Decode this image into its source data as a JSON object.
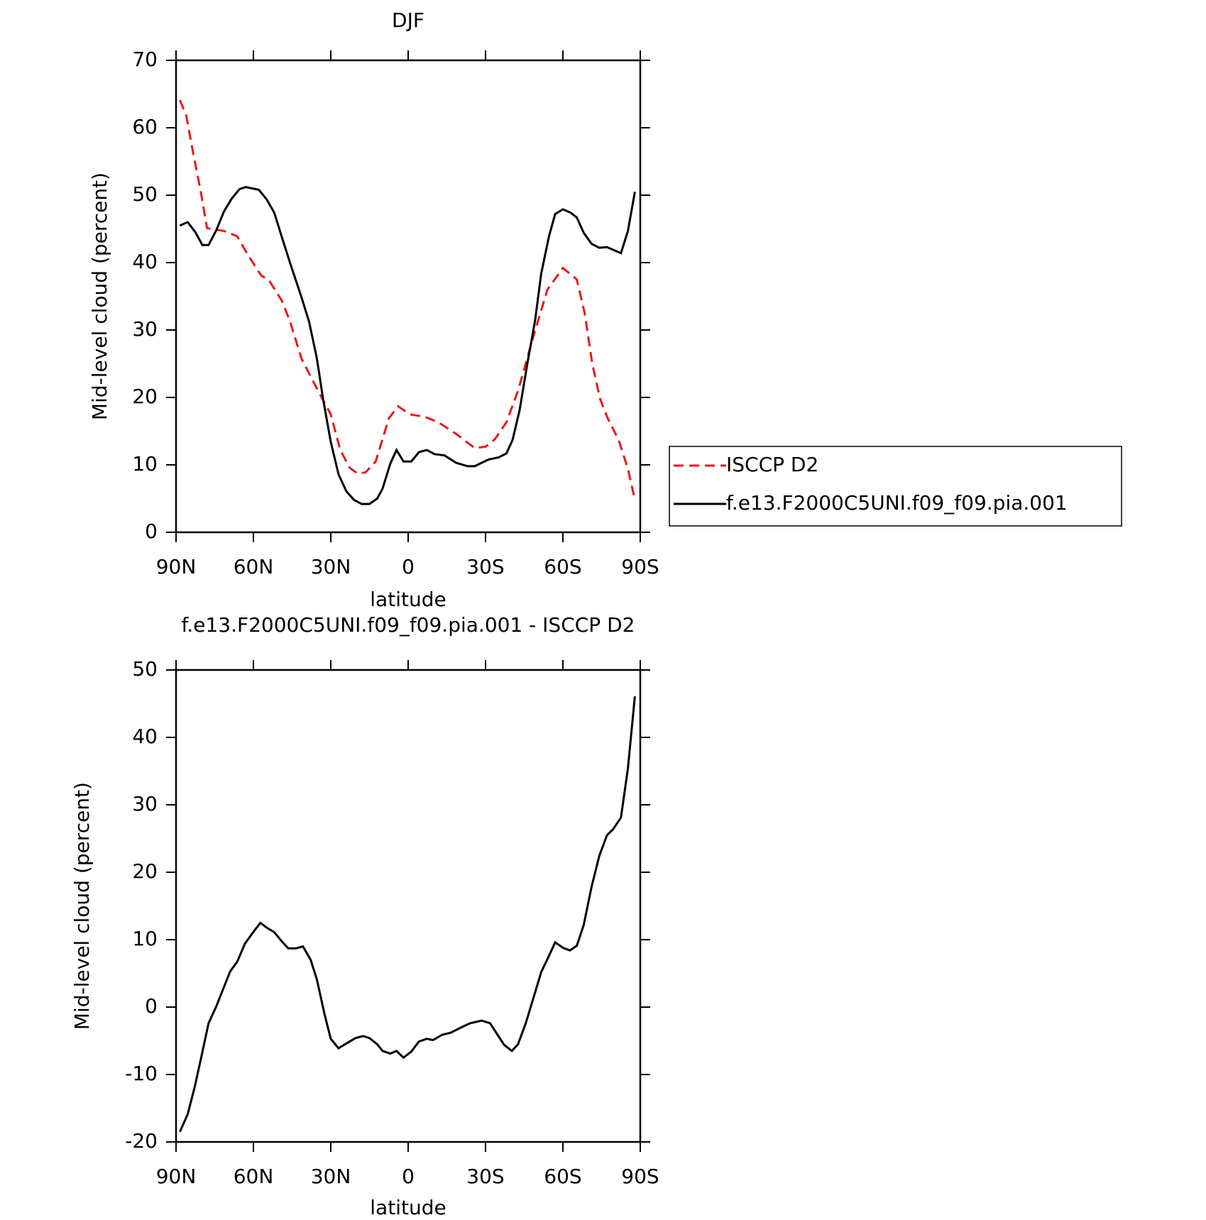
{
  "chart_data": [
    {
      "type": "line",
      "title": "DJF",
      "xlabel": "latitude",
      "ylabel": "Mid-level cloud (percent)",
      "xlim": [
        90,
        -90
      ],
      "ylim": [
        0,
        70
      ],
      "xticks": [
        {
          "value": 90,
          "label": "90N"
        },
        {
          "value": 60,
          "label": "60N"
        },
        {
          "value": 30,
          "label": "30N"
        },
        0,
        {
          "value": -30,
          "label": "30S"
        },
        {
          "value": -60,
          "label": "60S"
        },
        {
          "value": -90,
          "label": "90S"
        }
      ],
      "yticks": [
        0,
        10,
        20,
        30,
        40,
        50,
        60,
        70
      ],
      "legend": "right",
      "series": [
        {
          "name": "ISCCP D2",
          "color": "#e8191b",
          "dashed": true,
          "x": [
            88.5,
            86.1,
            83.4,
            80.4,
            78,
            71.4,
            66.3,
            62.4,
            57,
            54,
            48.9,
            45.9,
            41.4,
            35.4,
            30,
            26.4,
            22.8,
            19.5,
            16.5,
            12.6,
            7.5,
            3.9,
            -0.6,
            -6.6,
            -11.7,
            -18.6,
            -25.8,
            -30,
            -33.6,
            -38.1,
            -42.6,
            -48.6,
            -54,
            -60,
            -65.4,
            -68.4,
            -71.4,
            -74.4,
            -77.4,
            -81.6,
            -85.2,
            -87.9
          ],
          "values": [
            64.1,
            61.9,
            56.3,
            50.5,
            45.1,
            44.7,
            43.9,
            41.3,
            38.1,
            37.4,
            34.3,
            31.4,
            25.8,
            21.3,
            17.5,
            12.3,
            9.6,
            8.7,
            8.9,
            10.5,
            16.9,
            18.7,
            17.5,
            17.1,
            16.3,
            14.6,
            12.5,
            12.7,
            13.8,
            16.3,
            21,
            29.1,
            36,
            39.2,
            37.5,
            32.6,
            25,
            19.8,
            16.9,
            13.7,
            9.4,
            4.8
          ]
        },
        {
          "name": "f.e13.F2000C5UNI.f09_f09.pia.001",
          "color": "#000000",
          "dashed": false,
          "x": [
            88.5,
            85.5,
            82.5,
            79.8,
            77.4,
            74.4,
            71.4,
            68.4,
            65.4,
            63,
            57.9,
            54.9,
            51.9,
            48.9,
            45.9,
            41.4,
            38.4,
            35.4,
            33,
            30,
            27,
            24,
            21,
            18,
            15,
            12,
            9.9,
            6.9,
            4.5,
            1.8,
            -1.2,
            -4.2,
            -7.2,
            -10.2,
            -14.1,
            -18.6,
            -23.1,
            -25.8,
            -31.2,
            -35.1,
            -38.1,
            -40.5,
            -43.2,
            -46.2,
            -49.2,
            -51.6,
            -54.6,
            -57,
            -60,
            -63,
            -65.4,
            -68.1,
            -71.1,
            -74.1,
            -77.1,
            -82.5,
            -85.2,
            -87.9
          ],
          "values": [
            45.5,
            46,
            44.5,
            42.6,
            42.6,
            44.8,
            47.6,
            49.5,
            50.9,
            51.2,
            50.8,
            49.4,
            47.4,
            43.7,
            40.1,
            34.9,
            31.2,
            25.8,
            19.8,
            13.4,
            8.6,
            6.1,
            4.8,
            4.2,
            4.2,
            5,
            6.5,
            10.2,
            12.2,
            10.5,
            10.5,
            11.9,
            12.2,
            11.6,
            11.4,
            10.3,
            9.8,
            9.8,
            10.8,
            11.1,
            11.7,
            13.7,
            18.1,
            25,
            31.4,
            38.4,
            43.9,
            47.2,
            47.9,
            47.4,
            46.7,
            44.4,
            42.8,
            42.2,
            42.3,
            41.4,
            44.7,
            50.5
          ]
        }
      ]
    },
    {
      "type": "line",
      "title": "f.e13.F2000C5UNI.f09_f09.pia.001 - ISCCP D2",
      "xlabel": "latitude",
      "ylabel": "Mid-level cloud (percent)",
      "xlim": [
        90,
        -90
      ],
      "ylim": [
        -20,
        50
      ],
      "xticks": [
        {
          "value": 90,
          "label": "90N"
        },
        {
          "value": 60,
          "label": "60N"
        },
        {
          "value": 30,
          "label": "30N"
        },
        0,
        {
          "value": -30,
          "label": "30S"
        },
        {
          "value": -60,
          "label": "60S"
        },
        {
          "value": -90,
          "label": "90S"
        }
      ],
      "yticks": [
        -20,
        -10,
        0,
        10,
        20,
        30,
        40,
        50
      ],
      "series": [
        {
          "color": "#000000",
          "dashed": false,
          "x": [
            88.5,
            85.5,
            82.8,
            80.1,
            77.4,
            74.4,
            71.4,
            69,
            66.3,
            63.3,
            60.3,
            57.3,
            54.9,
            51.9,
            48.9,
            46.5,
            43.5,
            40.8,
            37.8,
            35.4,
            32.4,
            30,
            27,
            24,
            20.4,
            17.4,
            15,
            12,
            9.9,
            6.9,
            4.5,
            1.8,
            -1.2,
            -4.2,
            -7.2,
            -9.6,
            -13.2,
            -16.5,
            -20.1,
            -24,
            -28.5,
            -31.8,
            -34.5,
            -37.2,
            -40.2,
            -42.6,
            -45.6,
            -48.6,
            -51.6,
            -54.6,
            -57,
            -60,
            -62.7,
            -65.4,
            -68.1,
            -71.1,
            -74.1,
            -77.1,
            -79.5,
            -82.5,
            -85.2,
            -87.9
          ],
          "values": [
            -18.5,
            -15.9,
            -11.9,
            -7.2,
            -2.4,
            0.1,
            3,
            5.3,
            6.7,
            9.4,
            11,
            12.5,
            11.8,
            11.1,
            9.7,
            8.7,
            8.7,
            9,
            7,
            4.1,
            -1.1,
            -4.7,
            -6.1,
            -5.4,
            -4.6,
            -4.3,
            -4.6,
            -5.5,
            -6.5,
            -6.9,
            -6.5,
            -7.5,
            -6.6,
            -5.1,
            -4.7,
            -4.9,
            -4.1,
            -3.8,
            -3.1,
            -2.4,
            -2,
            -2.4,
            -4,
            -5.6,
            -6.5,
            -5.5,
            -2.4,
            1.4,
            5.2,
            7.6,
            9.6,
            8.8,
            8.4,
            9.1,
            12.2,
            17.8,
            22.4,
            25.5,
            26.4,
            28.1,
            35.4,
            46.1
          ]
        }
      ]
    }
  ]
}
